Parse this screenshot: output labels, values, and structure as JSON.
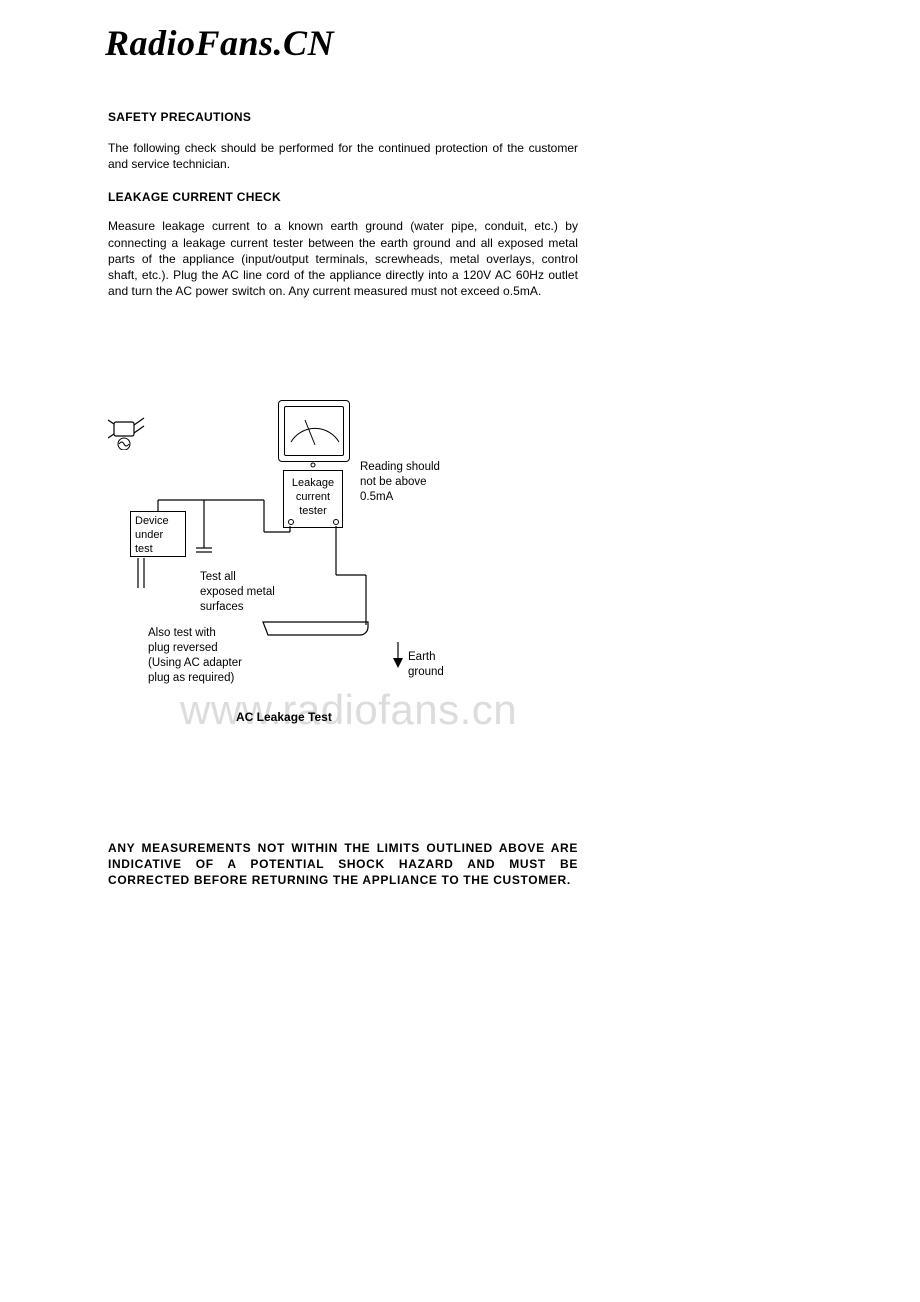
{
  "brand": "RadioFans.CN",
  "headings": {
    "safety": "SAFETY PRECAUTIONS",
    "leakage": "LEAKAGE CURRENT CHECK"
  },
  "paragraphs": {
    "intro": "The following check should be performed for the continued protection of the customer and service technician.",
    "leakage": "Measure leakage current to a known earth ground (water pipe, conduit, etc.) by connecting a leakage current tester between the earth ground and all exposed metal parts of the appliance (input/output terminals, screwheads, metal overlays, control shaft, etc.). Plug the AC line cord of the appliance directly into a 120V AC 60Hz outlet and turn the AC power switch on. Any current measured must not exceed o.5mA."
  },
  "diagram": {
    "reading_label": "Reading should\nnot be above\n0.5mA",
    "leakage_box": "Leakage\ncurrent\ntester",
    "device_box": "Device\nunder\ntest",
    "test_all": "Test all\nexposed metal\nsurfaces",
    "plug_reversed": "Also test with\nplug reversed\n(Using AC adapter\nplug as required)",
    "earth_ground": "Earth\nground",
    "caption": "AC Leakage Test",
    "colors": {
      "stroke": "#000000",
      "bg": "#ffffff"
    },
    "line_width": 1.2
  },
  "watermark": "www.radiofans.cn",
  "warning": "ANY MEASUREMENTS NOT WITHIN THE LIMITS OUTLINED ABOVE ARE INDICATIVE OF A POTENTIAL SHOCK HAZARD AND MUST BE CORRECTED BEFORE RETURNING THE APPLIANCE TO THE CUSTOMER."
}
